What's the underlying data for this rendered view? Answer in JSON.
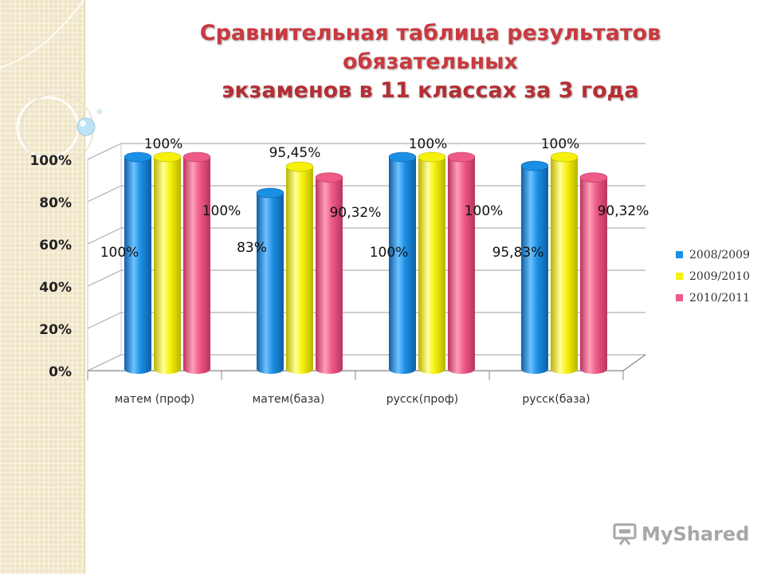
{
  "slide": {
    "title_line1": "Сравнительная таблица результатов обязательных",
    "title_line2": "экзаменов  в 11 классах  за 3 года",
    "watermark": "MyShared"
  },
  "colors": {
    "series": [
      "#1b8fe4",
      "#f5f10a",
      "#ee5b86"
    ],
    "series_dark": [
      "#0d5fa3",
      "#b9b300",
      "#b8345d"
    ],
    "series_light": [
      "#6ec2ff",
      "#ffff9a",
      "#ff9fba"
    ],
    "title": "#c9393f"
  },
  "chart_data": {
    "type": "bar",
    "title": "",
    "xlabel": "",
    "ylabel": "",
    "ylim": [
      0,
      100
    ],
    "yticks": [
      "0%",
      "20%",
      "40%",
      "60%",
      "80%",
      "100%"
    ],
    "categories": [
      "матем (проф)",
      "матем(база)",
      "русск(проф)",
      "русск(база)"
    ],
    "series": [
      {
        "name": "2008/2009",
        "values": [
          100,
          83,
          100,
          95.83
        ]
      },
      {
        "name": "2009/2010",
        "values": [
          100,
          95.45,
          100,
          100
        ]
      },
      {
        "name": "2010/2011",
        "values": [
          100,
          90.32,
          100,
          90.32
        ]
      }
    ],
    "data_labels": [
      [
        "100%",
        "83%",
        "100%",
        "95,83%"
      ],
      [
        "100%",
        "95,45%",
        "100%",
        "100%"
      ],
      [
        "100%",
        "90,32%",
        "100%",
        "90,32%"
      ]
    ],
    "grid": true,
    "legend": "right"
  }
}
